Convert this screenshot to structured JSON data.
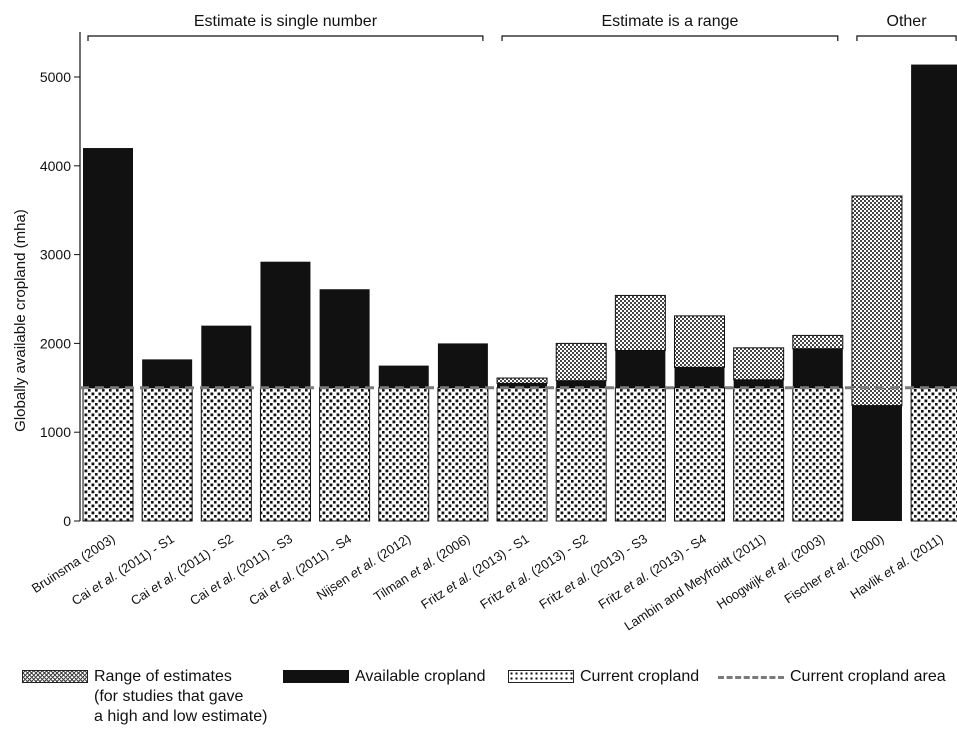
{
  "chart_data": {
    "type": "bar",
    "stacked": true,
    "ylabel": "Globally available cropland (mha)",
    "ylim": [
      0,
      5500
    ],
    "yticks": [
      0,
      1000,
      2000,
      3000,
      4000,
      5000
    ],
    "current_cropland_area": 1500,
    "groups": [
      {
        "label": "Estimate is single number",
        "from": 0,
        "to": 6
      },
      {
        "label": "Estimate is a range",
        "from": 7,
        "to": 12
      },
      {
        "label": "Other",
        "from": 13,
        "to": 14
      }
    ],
    "categories": [
      {
        "pre": "Bruinsma (2003)",
        "it": "",
        "post": ""
      },
      {
        "pre": "Cai ",
        "it": "et al.",
        "post": " (2011) - S1"
      },
      {
        "pre": "Cai ",
        "it": "et al.",
        "post": " (2011) - S2"
      },
      {
        "pre": "Cai ",
        "it": "et al.",
        "post": " (2011) - S3"
      },
      {
        "pre": "Cai ",
        "it": "et al.",
        "post": " (2011) - S4"
      },
      {
        "pre": "Nijsen ",
        "it": "et al.",
        "post": " (2012)"
      },
      {
        "pre": "Tilman ",
        "it": "et al.",
        "post": " (2006)"
      },
      {
        "pre": "Fritz ",
        "it": "et al.",
        "post": " (2013) - S1"
      },
      {
        "pre": "Fritz ",
        "it": "et al.",
        "post": " (2013) - S2"
      },
      {
        "pre": "Fritz ",
        "it": "et al.",
        "post": " (2013) - S3"
      },
      {
        "pre": "Fritz ",
        "it": "et al.",
        "post": " (2013) - S4"
      },
      {
        "pre": "Lambin and Meyfroidt (2011)",
        "it": "",
        "post": ""
      },
      {
        "pre": "Hoogwijk ",
        "it": "et al.",
        "post": " (2003)"
      },
      {
        "pre": "Fischer ",
        "it": "et al.",
        "post": " (2000)"
      },
      {
        "pre": "Havlik ",
        "it": "et al.",
        "post": " (2011)"
      }
    ],
    "series": [
      {
        "name": "Current cropland",
        "values": [
          1500,
          1500,
          1500,
          1500,
          1500,
          1500,
          1500,
          1500,
          1500,
          1500,
          1500,
          1500,
          1500,
          0,
          1500
        ]
      },
      {
        "name": "Available cropland",
        "values": [
          2700,
          320,
          700,
          1420,
          1110,
          250,
          500,
          50,
          80,
          420,
          230,
          90,
          440,
          1300,
          3640
        ]
      },
      {
        "name": "Range of estimates (for studies that gave a high and low estimate)",
        "values": [
          0,
          0,
          0,
          0,
          0,
          0,
          0,
          60,
          420,
          620,
          580,
          360,
          150,
          2360,
          0
        ]
      }
    ],
    "legend": {
      "range": [
        "Range of estimates",
        "(for studies that gave",
        "a high and low estimate)"
      ],
      "available": "Available cropland",
      "current": "Current cropland",
      "area_line": "Current cropland area"
    },
    "colors": {
      "available": "#111111",
      "range": "#555555",
      "current_dots": "#111111",
      "dash": "#7a7a7a"
    }
  }
}
